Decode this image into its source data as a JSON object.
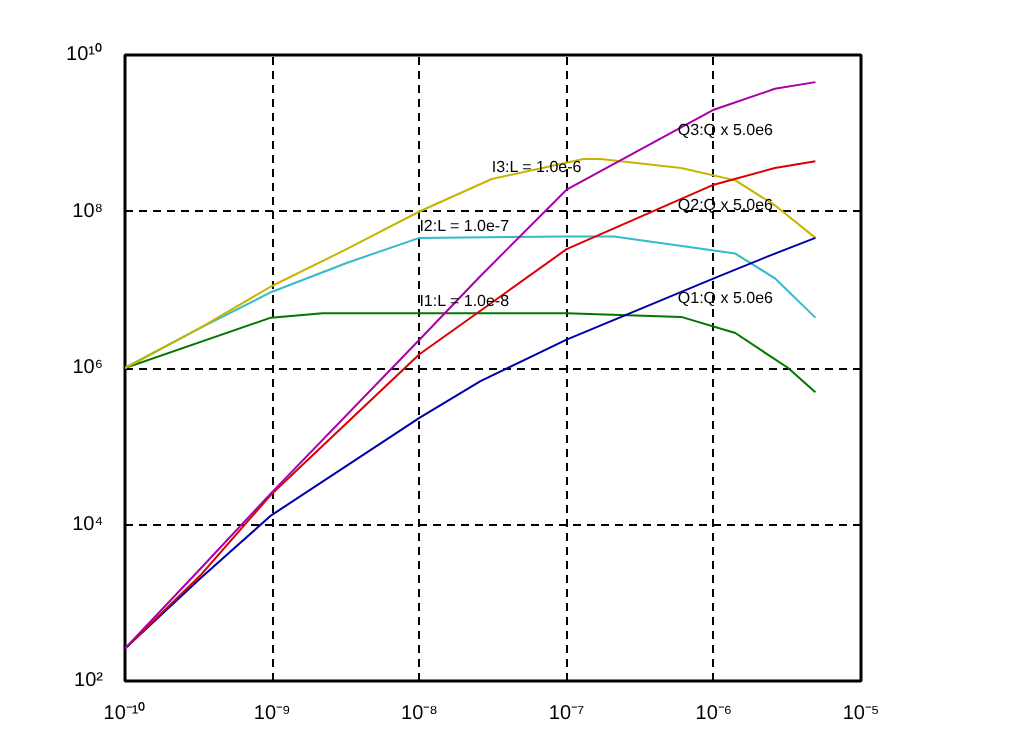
{
  "chart_data": {
    "type": "line",
    "log": "xy",
    "grid": true,
    "marker": "none",
    "xlim": [
      1e-10,
      1e-05
    ],
    "ylim": [
      100.0,
      10000000000.0
    ],
    "xticks": [
      {
        "value": 1e-10,
        "label": "10⁻¹⁰"
      },
      {
        "value": 1e-09,
        "label": "10⁻⁹"
      },
      {
        "value": 1e-08,
        "label": "10⁻⁸"
      },
      {
        "value": 1e-07,
        "label": "10⁻⁷"
      },
      {
        "value": 1e-06,
        "label": "10⁻⁶"
      },
      {
        "value": 1e-05,
        "label": "10⁻⁵"
      }
    ],
    "yticks": [
      {
        "value": 100.0,
        "label": "10²"
      },
      {
        "value": 10000.0,
        "label": "10⁴"
      },
      {
        "value": 1000000.0,
        "label": "10⁶"
      },
      {
        "value": 100000000.0,
        "label": "10⁸"
      },
      {
        "value": 10000000000.0,
        "label": "10¹⁰"
      }
    ],
    "series": [
      {
        "color": "#007700",
        "x": [
          1e-10,
          9.8e-10,
          2.2e-09,
          1e-08,
          1e-07,
          6e-07,
          1.4e-06,
          3.2e-06,
          4.9e-06
        ],
        "values": [
          1000000.0,
          4400000.0,
          5000000.0,
          5000000.0,
          5000000.0,
          4500000.0,
          2800000.0,
          1000000.0,
          490000.0
        ]
      },
      {
        "color": "#33bbcc",
        "x": [
          1e-10,
          3.2e-10,
          9.8e-10,
          3.2e-09,
          1e-08,
          1e-07,
          2.1e-07,
          1.4e-06,
          2.6e-06,
          4.9e-06
        ],
        "values": [
          1000000.0,
          3200000.0,
          9300000.0,
          22000000.0,
          46000000.0,
          48000000.0,
          48000000.0,
          29000000.0,
          14000000.0,
          4400000.0
        ]
      },
      {
        "color": "#c8b400",
        "x": [
          1e-10,
          3.2e-10,
          9.8e-10,
          3.2e-09,
          1e-08,
          3.1e-08,
          1.3e-07,
          1.7e-07,
          6e-07,
          1.4e-06,
          2.6e-06,
          4.9e-06
        ],
        "values": [
          1000000.0,
          3200000.0,
          11000000.0,
          33000000.0,
          100000000.0,
          260000000.0,
          470000000.0,
          470000000.0,
          360000000.0,
          250000000.0,
          120000000.0,
          46000000.0
        ]
      },
      {
        "color": "#0000aa",
        "x": [
          1e-10,
          3.2e-10,
          9.8e-10,
          1e-08,
          2.6e-08,
          1e-07,
          1e-06,
          2.6e-06,
          4.9e-06
        ],
        "values": [
          260.0,
          2000.0,
          13000.0,
          230000.0,
          680000.0,
          2300000.0,
          14000000.0,
          29000000.0,
          46000000.0
        ]
      },
      {
        "color": "#dd0000",
        "x": [
          1e-10,
          3.3e-10,
          9.8e-10,
          1e-08,
          2.6e-08,
          1e-07,
          1e-06,
          2.6e-06,
          4.9e-06
        ],
        "values": [
          260.0,
          2300.0,
          24000.0,
          1500000.0,
          5400000.0,
          33000000.0,
          220000000.0,
          360000000.0,
          440000000.0
        ]
      },
      {
        "color": "#aa00aa",
        "x": [
          1e-10,
          3.3e-10,
          9.8e-10,
          1e-08,
          2.6e-08,
          1e-07,
          1e-06,
          2.6e-06,
          4.9e-06
        ],
        "values": [
          260.0,
          2800.0,
          25000.0,
          2300000.0,
          15000000.0,
          190000000.0,
          2000000000.0,
          3700000000.0,
          4500000000.0
        ]
      }
    ],
    "annotations": [
      {
        "text": "I3:L = 1.0e-6",
        "x": 3.1e-08,
        "y": 260000000.0
      },
      {
        "text": "I2:L = 1.0e-7",
        "x": 1e-08,
        "y": 46000000.0
      },
      {
        "text": "I1:L = 1.0e-8",
        "x": 1e-08,
        "y": 5000000.0
      },
      {
        "text": "Q3:Q x 5.0e6",
        "x": 1e-06,
        "y": 2000000000.0
      },
      {
        "text": "Q2:Q x 5.0e6",
        "x": 1e-06,
        "y": 220000000.0
      },
      {
        "text": "Q1:Q x 5.0e6",
        "x": 1e-06,
        "y": 14000000.0
      }
    ]
  }
}
